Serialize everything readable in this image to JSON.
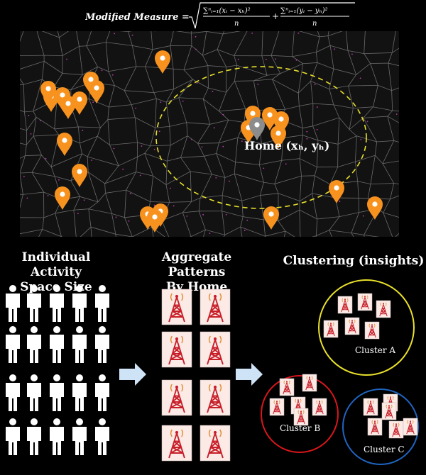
{
  "formula": {
    "lhs": "Modified Measure =",
    "term1_num": "∑ⁿᵢ₌₁(xᵢ − xₕ)²",
    "term2_num": "∑ⁿᵢ₌₁(yᵢ − yₕ)²",
    "denominator": "n",
    "plus": "+"
  },
  "map": {
    "home_label": "Home (xₕ, yₕ)"
  },
  "sections": {
    "individual": "Individual Activity Space Size",
    "individual_l1": "Individual Activity",
    "individual_l2": "Space Size",
    "aggregate_l1": "Aggregate Patterns",
    "aggregate_l2": "By Home",
    "clustering": "Clustering (insights)"
  },
  "clusters": [
    {
      "label": "Cluster A",
      "color": "#e8e02a"
    },
    {
      "label": "Cluster B",
      "color": "#d8161c"
    },
    {
      "label": "Cluster C",
      "color": "#1f64c0"
    }
  ],
  "colors": {
    "pin": "#f7921e",
    "home_pin": "#8c8c8c",
    "ellipse": "#e8e02a",
    "tower": "#c8202a",
    "arrow": "#cfe3f7"
  },
  "icons": [
    "location-pin-icon",
    "person-icon",
    "cell-tower-icon",
    "arrow-right-icon"
  ]
}
